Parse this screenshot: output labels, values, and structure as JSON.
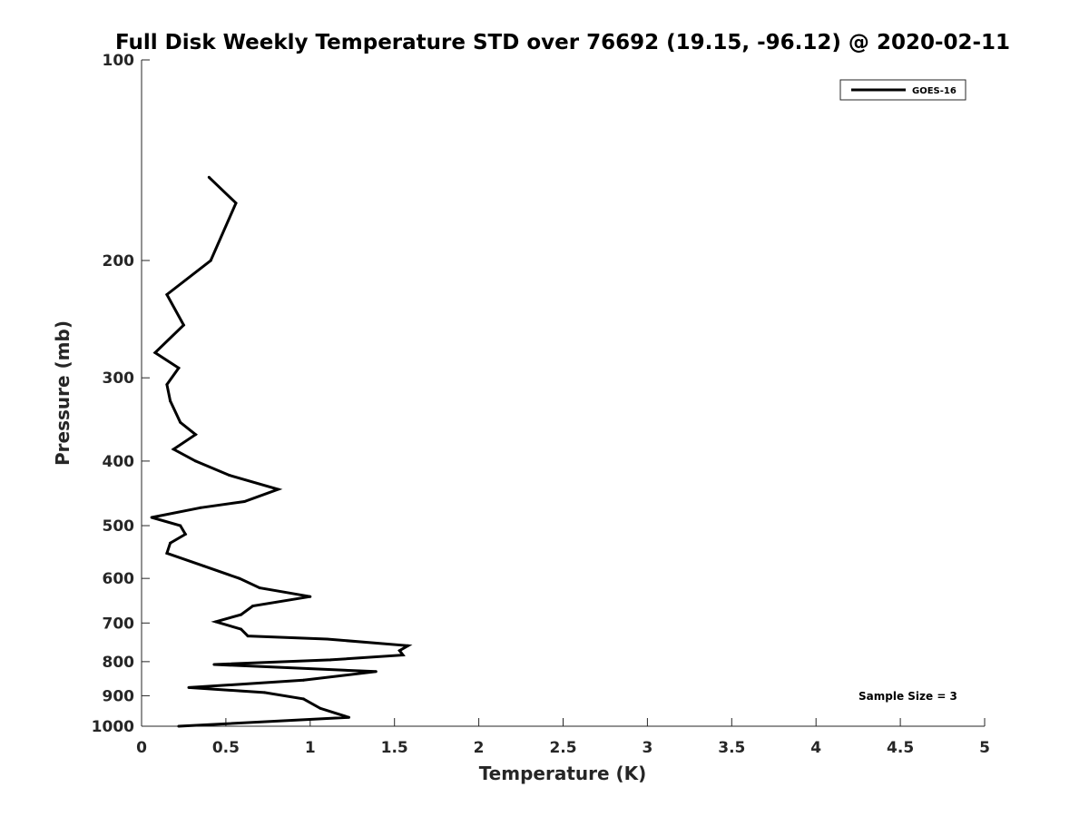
{
  "chart_data": {
    "type": "line",
    "title": "Full Disk Weekly Temperature STD over 76692 (19.15, -96.12) @ 2020-02-11",
    "xlabel": "Temperature (K)",
    "ylabel": "Pressure (mb)",
    "xlim": [
      0,
      5
    ],
    "ylim": [
      1000,
      100
    ],
    "yscale": "log",
    "y_inverted": true,
    "grid": false,
    "legend_position": "top-right",
    "x_ticks": [
      0,
      0.5,
      1,
      1.5,
      2,
      2.5,
      3,
      3.5,
      4,
      4.5,
      5
    ],
    "x_tick_labels": [
      "0",
      "0.5",
      "1",
      "1.5",
      "2",
      "2.5",
      "3",
      "3.5",
      "4",
      "4.5",
      "5"
    ],
    "y_ticks": [
      100,
      200,
      300,
      400,
      500,
      600,
      700,
      800,
      900,
      1000
    ],
    "y_tick_labels": [
      "100",
      "200",
      "300",
      "400",
      "500",
      "600",
      "700",
      "800",
      "900",
      "1000"
    ],
    "annotation": "Sample Size = 3",
    "series": [
      {
        "name": "GOES-16",
        "color": "#000000",
        "points": [
          [
            0.4,
            150
          ],
          [
            0.56,
            164
          ],
          [
            0.41,
            200
          ],
          [
            0.15,
            225
          ],
          [
            0.25,
            250
          ],
          [
            0.08,
            275
          ],
          [
            0.22,
            290
          ],
          [
            0.15,
            307
          ],
          [
            0.17,
            325
          ],
          [
            0.23,
            350
          ],
          [
            0.32,
            365
          ],
          [
            0.19,
            384
          ],
          [
            0.32,
            400
          ],
          [
            0.52,
            420
          ],
          [
            0.81,
            441
          ],
          [
            0.61,
            460
          ],
          [
            0.35,
            470
          ],
          [
            0.06,
            486
          ],
          [
            0.23,
            500
          ],
          [
            0.26,
            515
          ],
          [
            0.17,
            531
          ],
          [
            0.15,
            550
          ],
          [
            0.37,
            575
          ],
          [
            0.58,
            600
          ],
          [
            0.7,
            620
          ],
          [
            1.0,
            639
          ],
          [
            0.66,
            660
          ],
          [
            0.59,
            680
          ],
          [
            0.44,
            697
          ],
          [
            0.59,
            715
          ],
          [
            0.63,
            732
          ],
          [
            1.1,
            740
          ],
          [
            1.58,
            757
          ],
          [
            1.53,
            770
          ],
          [
            1.55,
            782
          ],
          [
            1.12,
            795
          ],
          [
            0.43,
            808
          ],
          [
            1.39,
            828
          ],
          [
            0.96,
            853
          ],
          [
            0.28,
            875
          ],
          [
            0.73,
            890
          ],
          [
            0.96,
            910
          ],
          [
            1.06,
            940
          ],
          [
            1.23,
            970
          ],
          [
            0.22,
            1000
          ]
        ]
      }
    ]
  }
}
